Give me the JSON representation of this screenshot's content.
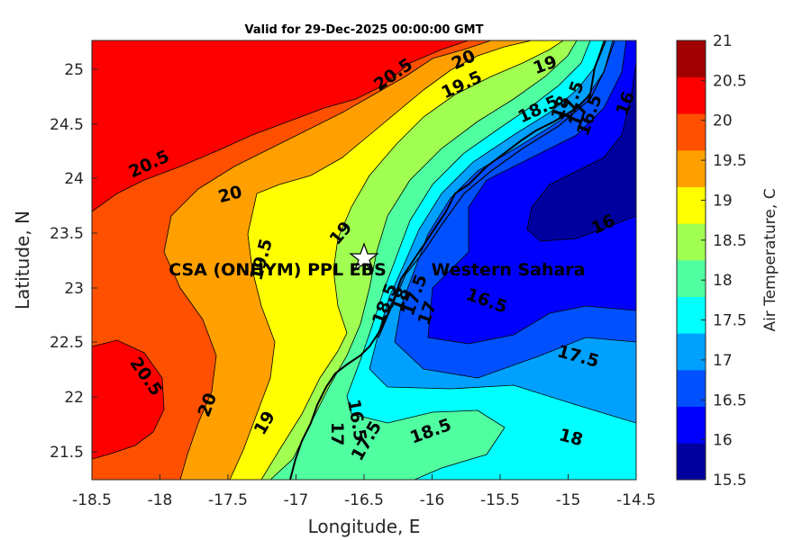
{
  "title": "Valid for 29-Dec-2025 00:00:00 GMT",
  "xaxis": {
    "label": "Longitude, E",
    "ticks": [
      "-18.5",
      "-18",
      "-17.5",
      "-17",
      "-16.5",
      "-16",
      "-15.5",
      "-15",
      "-14.5"
    ]
  },
  "yaxis": {
    "label": "Latitude, N",
    "ticks": [
      "21.5",
      "22",
      "22.5",
      "23",
      "23.5",
      "24",
      "24.5",
      "25"
    ]
  },
  "colorbar": {
    "label": "Air Temperature, C",
    "ticks": [
      "15.5",
      "16",
      "16.5",
      "17",
      "17.5",
      "18",
      "18.5",
      "19",
      "19.5",
      "20",
      "20.5",
      "21"
    ],
    "colors": [
      "#00009f",
      "#0000ff",
      "#0050ff",
      "#00a0ff",
      "#00ffff",
      "#50ffa0",
      "#a0ff50",
      "#ffff00",
      "#ffa000",
      "#ff5000",
      "#ff0000",
      "#a00000"
    ]
  },
  "places": {
    "station": "CSA (ONHYM) PPL EBS",
    "region": "Western Sahara"
  },
  "contour_labels": [
    "20.5",
    "20",
    "19.5",
    "19",
    "18.5",
    "18",
    "17.5",
    "17",
    "16.5",
    "16",
    "20.5",
    "20",
    "19.5",
    "19",
    "18.5",
    "18",
    "17.5",
    "17",
    "16.5",
    "16",
    "20.5",
    "20",
    "19",
    "18.5",
    "18",
    "17.5",
    "17",
    "16.5",
    "17.5",
    "18",
    "18.5",
    "19",
    "17",
    "17.5",
    "18"
  ],
  "chart_data": {
    "type": "contour-map",
    "title": "Valid for 29-Dec-2025 00:00:00 GMT",
    "xlabel": "Longitude, E",
    "ylabel": "Latitude, N",
    "xlim": [
      -18.5,
      -14.5
    ],
    "ylim": [
      21.25,
      25.25
    ],
    "color_range": [
      15.5,
      21
    ],
    "contour_interval": 0.5,
    "station": {
      "name": "CSA (ONHYM) PPL EBS",
      "lon": -16.5,
      "lat": 23.3
    }
  }
}
